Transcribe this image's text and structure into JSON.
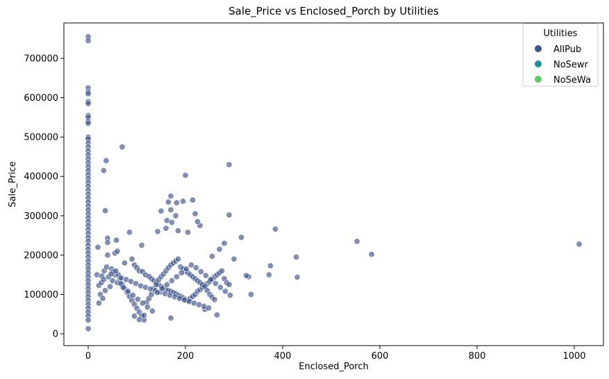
{
  "chart_data": {
    "type": "scatter",
    "title": "Sale_Price vs Enclosed_Porch by Utilities",
    "xlabel": "Enclosed_Porch",
    "ylabel": "Sale_Price",
    "xlim": [
      -50,
      1060
    ],
    "ylim": [
      -30000,
      790000
    ],
    "xticks": [
      0,
      200,
      400,
      600,
      800,
      1000
    ],
    "yticks": [
      0,
      100000,
      200000,
      300000,
      400000,
      500000,
      600000,
      700000
    ],
    "grid": false,
    "legend": {
      "title": "Utilities",
      "placement": "top-right",
      "entries": [
        {
          "name": "AllPub",
          "color": "#3b528b"
        },
        {
          "name": "NoSewr",
          "color": "#21918c"
        },
        {
          "name": "NoSeWa",
          "color": "#5ec962"
        }
      ]
    },
    "series": [
      {
        "name": "AllPub",
        "color": "#3b528b",
        "points": [
          [
            0,
            755000
          ],
          [
            0,
            745000
          ],
          [
            0,
            625000
          ],
          [
            0,
            615000
          ],
          [
            0,
            610000
          ],
          [
            0,
            590000
          ],
          [
            0,
            585000
          ],
          [
            0,
            555000
          ],
          [
            0,
            550000
          ],
          [
            0,
            540000
          ],
          [
            0,
            535000
          ],
          [
            0,
            500000
          ],
          [
            0,
            495000
          ],
          [
            0,
            485000
          ],
          [
            0,
            475000
          ],
          [
            0,
            465000
          ],
          [
            0,
            455000
          ],
          [
            0,
            445000
          ],
          [
            0,
            435000
          ],
          [
            0,
            425000
          ],
          [
            0,
            415000
          ],
          [
            0,
            405000
          ],
          [
            0,
            395000
          ],
          [
            0,
            385000
          ],
          [
            0,
            375000
          ],
          [
            0,
            365000
          ],
          [
            0,
            355000
          ],
          [
            0,
            345000
          ],
          [
            0,
            335000
          ],
          [
            0,
            325000
          ],
          [
            0,
            315000
          ],
          [
            0,
            305000
          ],
          [
            0,
            295000
          ],
          [
            0,
            285000
          ],
          [
            0,
            275000
          ],
          [
            0,
            265000
          ],
          [
            0,
            255000
          ],
          [
            0,
            245000
          ],
          [
            0,
            235000
          ],
          [
            0,
            225000
          ],
          [
            0,
            215000
          ],
          [
            0,
            205000
          ],
          [
            0,
            195000
          ],
          [
            0,
            185000
          ],
          [
            0,
            175000
          ],
          [
            0,
            165000
          ],
          [
            0,
            155000
          ],
          [
            0,
            145000
          ],
          [
            0,
            135000
          ],
          [
            0,
            125000
          ],
          [
            0,
            115000
          ],
          [
            0,
            105000
          ],
          [
            0,
            95000
          ],
          [
            0,
            85000
          ],
          [
            0,
            75000
          ],
          [
            0,
            65000
          ],
          [
            0,
            55000
          ],
          [
            0,
            45000
          ],
          [
            0,
            35000
          ],
          [
            0,
            13000
          ],
          [
            70,
            475000
          ],
          [
            290,
            430000
          ],
          [
            37,
            440000
          ],
          [
            32,
            415000
          ],
          [
            200,
            403000
          ],
          [
            35,
            313000
          ],
          [
            170,
            350000
          ],
          [
            215,
            340000
          ],
          [
            195,
            337000
          ],
          [
            182,
            333000
          ],
          [
            165,
            335000
          ],
          [
            170,
            315000
          ],
          [
            150,
            312000
          ],
          [
            162,
            288000
          ],
          [
            180,
            300000
          ],
          [
            290,
            302000
          ],
          [
            220,
            305000
          ],
          [
            385,
            266000
          ],
          [
            85,
            258000
          ],
          [
            143,
            260000
          ],
          [
            185,
            262000
          ],
          [
            205,
            258000
          ],
          [
            230,
            275000
          ],
          [
            225,
            285000
          ],
          [
            40,
            243000
          ],
          [
            58,
            238000
          ],
          [
            160,
            268000
          ],
          [
            172,
            283000
          ],
          [
            315,
            245000
          ],
          [
            553,
            235000
          ],
          [
            583,
            202000
          ],
          [
            1010,
            228000
          ],
          [
            428,
            195000
          ],
          [
            430,
            144000
          ],
          [
            375,
            173000
          ],
          [
            372,
            150000
          ],
          [
            330,
            145000
          ],
          [
            335,
            100000
          ],
          [
            325,
            148000
          ],
          [
            300,
            190000
          ],
          [
            270,
            215000
          ],
          [
            280,
            230000
          ],
          [
            255,
            197000
          ],
          [
            110,
            225000
          ],
          [
            20,
            220000
          ],
          [
            40,
            232000
          ],
          [
            40,
            200000
          ],
          [
            55,
            205000
          ],
          [
            60,
            210000
          ],
          [
            75,
            180000
          ],
          [
            90,
            190000
          ],
          [
            95,
            175000
          ],
          [
            100,
            168000
          ],
          [
            105,
            160000
          ],
          [
            112,
            158000
          ],
          [
            118,
            150000
          ],
          [
            125,
            146000
          ],
          [
            130,
            140000
          ],
          [
            135,
            135000
          ],
          [
            140,
            130000
          ],
          [
            145,
            125000
          ],
          [
            150,
            120000
          ],
          [
            155,
            118000
          ],
          [
            160,
            112000
          ],
          [
            165,
            110000
          ],
          [
            170,
            108000
          ],
          [
            175,
            105000
          ],
          [
            180,
            102000
          ],
          [
            185,
            98000
          ],
          [
            190,
            95000
          ],
          [
            195,
            92000
          ],
          [
            200,
            88000
          ],
          [
            205,
            85000
          ],
          [
            210,
            90000
          ],
          [
            215,
            95000
          ],
          [
            220,
            100000
          ],
          [
            225,
            108000
          ],
          [
            230,
            112000
          ],
          [
            235,
            118000
          ],
          [
            240,
            122000
          ],
          [
            245,
            128000
          ],
          [
            250,
            133000
          ],
          [
            255,
            138000
          ],
          [
            260,
            145000
          ],
          [
            265,
            150000
          ],
          [
            270,
            155000
          ],
          [
            275,
            160000
          ],
          [
            280,
            140000
          ],
          [
            285,
            130000
          ],
          [
            290,
            125000
          ],
          [
            25,
            100000
          ],
          [
            30,
            90000
          ],
          [
            35,
            110000
          ],
          [
            45,
            120000
          ],
          [
            50,
            135000
          ],
          [
            55,
            150000
          ],
          [
            60,
            130000
          ],
          [
            65,
            140000
          ],
          [
            70,
            125000
          ],
          [
            75,
            115000
          ],
          [
            80,
            105000
          ],
          [
            85,
            95000
          ],
          [
            90,
            85000
          ],
          [
            95,
            75000
          ],
          [
            100,
            65000
          ],
          [
            105,
            55000
          ],
          [
            110,
            45000
          ],
          [
            115,
            35000
          ],
          [
            120,
            80000
          ],
          [
            125,
            90000
          ],
          [
            130,
            100000
          ],
          [
            135,
            115000
          ],
          [
            140,
            125000
          ],
          [
            145,
            137000
          ],
          [
            150,
            145000
          ],
          [
            155,
            152000
          ],
          [
            160,
            160000
          ],
          [
            165,
            168000
          ],
          [
            170,
            175000
          ],
          [
            175,
            180000
          ],
          [
            180,
            185000
          ],
          [
            185,
            190000
          ],
          [
            190,
            170000
          ],
          [
            195,
            165000
          ],
          [
            200,
            160000
          ],
          [
            205,
            155000
          ],
          [
            210,
            150000
          ],
          [
            215,
            145000
          ],
          [
            220,
            140000
          ],
          [
            225,
            135000
          ],
          [
            230,
            130000
          ],
          [
            235,
            125000
          ],
          [
            240,
            120000
          ],
          [
            245,
            110000
          ],
          [
            250,
            100000
          ],
          [
            255,
            93000
          ],
          [
            260,
            87000
          ],
          [
            265,
            48000
          ],
          [
            240,
            62000
          ],
          [
            170,
            40000
          ],
          [
            95,
            45000
          ],
          [
            105,
            36000
          ],
          [
            115,
            47000
          ],
          [
            22,
            78000
          ],
          [
            18,
            150000
          ],
          [
            28,
            147000
          ],
          [
            33,
            160000
          ],
          [
            38,
            170000
          ],
          [
            48,
            165000
          ],
          [
            52,
            158000
          ],
          [
            62,
            150000
          ],
          [
            68,
            142000
          ],
          [
            78,
            138000
          ],
          [
            88,
            133000
          ],
          [
            98,
            128000
          ],
          [
            108,
            122000
          ],
          [
            118,
            118000
          ],
          [
            128,
            114000
          ],
          [
            138,
            110000
          ],
          [
            148,
            106000
          ],
          [
            158,
            102000
          ],
          [
            168,
            98000
          ],
          [
            178,
            94000
          ],
          [
            188,
            90000
          ],
          [
            198,
            86000
          ],
          [
            208,
            82000
          ],
          [
            218,
            78000
          ],
          [
            228,
            74000
          ],
          [
            238,
            70000
          ],
          [
            248,
            66000
          ],
          [
            22,
            123000
          ],
          [
            27,
            130000
          ],
          [
            32,
            138000
          ],
          [
            42,
            145000
          ],
          [
            47,
            152000
          ],
          [
            57,
            160000
          ],
          [
            67,
            128000
          ],
          [
            72,
            118000
          ],
          [
            82,
            108000
          ],
          [
            92,
            98000
          ],
          [
            102,
            88000
          ],
          [
            112,
            78000
          ],
          [
            122,
            68000
          ],
          [
            132,
            58000
          ],
          [
            142,
            105000
          ],
          [
            152,
            115000
          ],
          [
            162,
            125000
          ],
          [
            172,
            135000
          ],
          [
            182,
            145000
          ],
          [
            192,
            155000
          ],
          [
            202,
            165000
          ],
          [
            212,
            175000
          ],
          [
            222,
            168000
          ],
          [
            232,
            158000
          ],
          [
            242,
            148000
          ],
          [
            252,
            138000
          ],
          [
            262,
            128000
          ],
          [
            272,
            118000
          ],
          [
            282,
            108000
          ],
          [
            292,
            98000
          ]
        ]
      }
    ]
  }
}
